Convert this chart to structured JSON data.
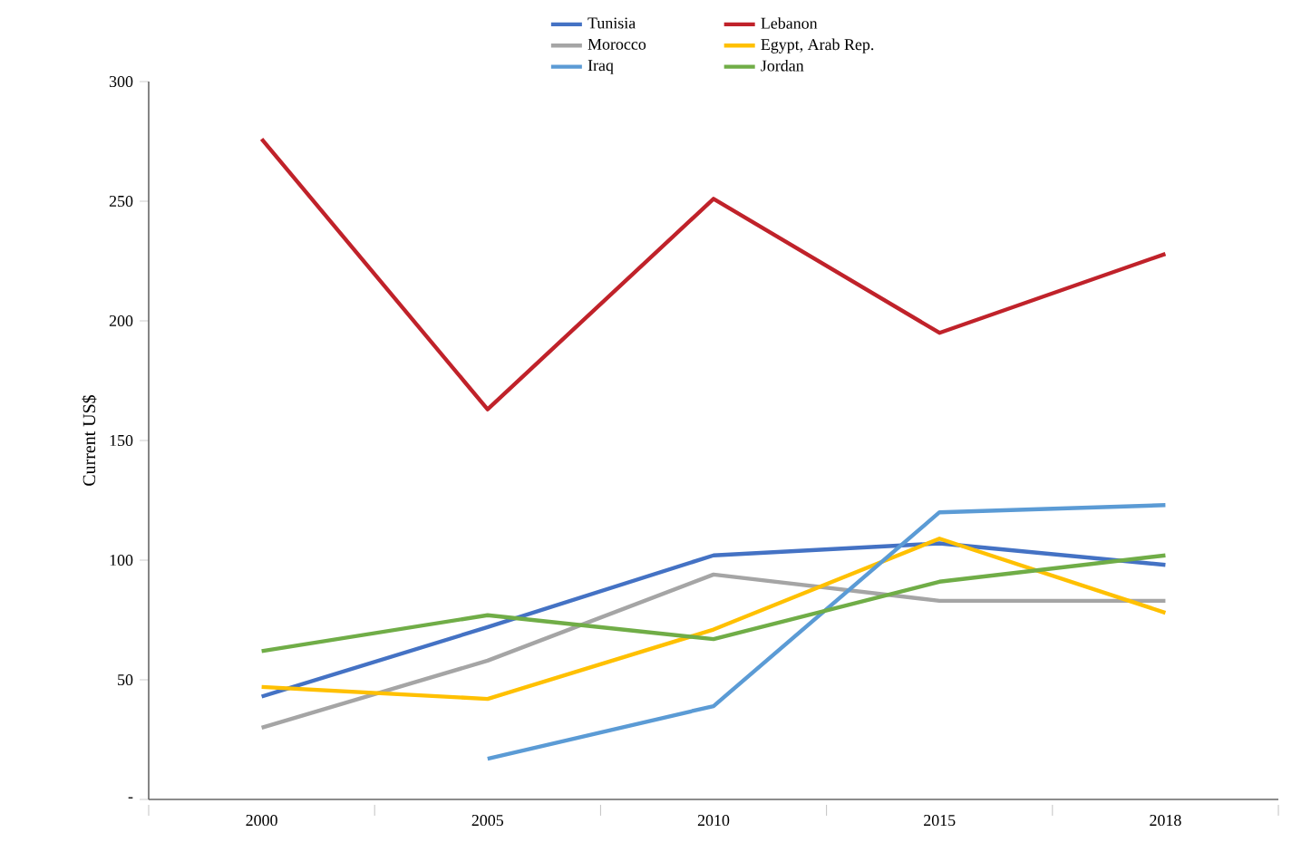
{
  "chart_data": {
    "type": "line",
    "ylabel": "Current US$",
    "categories": [
      "2000",
      "2005",
      "2010",
      "2015",
      "2018"
    ],
    "series": [
      {
        "name": "Tunisia",
        "color": "#4472c4",
        "values": [
          43,
          72,
          102,
          107,
          98
        ]
      },
      {
        "name": "Lebanon",
        "color": "#c0222a",
        "values": [
          276,
          163,
          251,
          195,
          228
        ]
      },
      {
        "name": "Morocco",
        "color": "#a5a5a5",
        "values": [
          30,
          58,
          94,
          83,
          83
        ]
      },
      {
        "name": "Egypt, Arab Rep.",
        "color": "#ffc000",
        "values": [
          47,
          42,
          71,
          109,
          78
        ]
      },
      {
        "name": "Iraq",
        "color": "#5b9bd5",
        "values": [
          null,
          17,
          39,
          120,
          123
        ]
      },
      {
        "name": "Jordan",
        "color": "#70ad47",
        "values": [
          62,
          77,
          67,
          91,
          102
        ]
      }
    ],
    "ylim": [
      0,
      300
    ],
    "yticks": [
      {
        "value": 0,
        "label": "-"
      },
      50,
      100,
      150,
      200,
      250,
      300
    ],
    "legend": "top"
  }
}
